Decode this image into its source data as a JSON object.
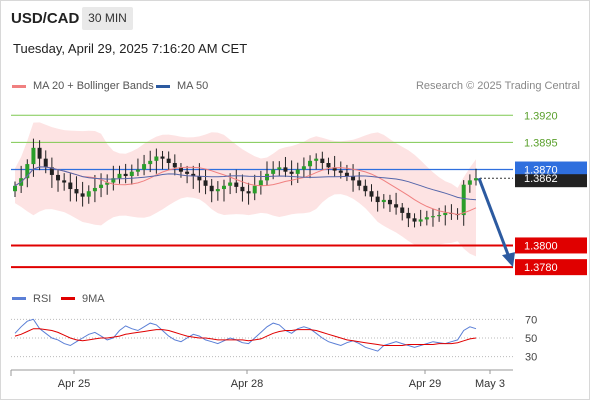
{
  "header": {
    "symbol": "USD/CAD",
    "timeframe": "30 MIN",
    "datetime": "Tuesday, April 29, 2025 7:16:20 AM CET"
  },
  "legend": {
    "ma20_label": "MA 20 + Bollinger Bands",
    "ma20_color": "#f08080",
    "ma50_label": "MA 50",
    "ma50_color": "#2c5aa0",
    "credit": "Research © 2025 Trading Central"
  },
  "rsi_legend": {
    "rsi_label": "RSI",
    "rsi_color": "#5b7fd6",
    "ma_label": "9MA",
    "ma_color": "#e00000"
  },
  "chart_data": [
    {
      "type": "candlestick",
      "title": "USD/CAD 30 MIN",
      "price_range": [
        1.377,
        1.3935
      ],
      "x_tick_labels": [
        "Apr 25",
        "Apr 28",
        "Apr 29",
        "May 3"
      ],
      "levels": [
        {
          "value": 1.392,
          "label": "1.3920",
          "kind": "resistance",
          "color": "#7ec850"
        },
        {
          "value": 1.3895,
          "label": "1.3895",
          "kind": "resistance",
          "color": "#7ec850"
        },
        {
          "value": 1.387,
          "label": "1.3870",
          "kind": "pivot",
          "color": "#2f6fde"
        },
        {
          "value": 1.38,
          "label": "1.3800",
          "kind": "support",
          "color": "#e00000"
        },
        {
          "value": 1.378,
          "label": "1.3780",
          "kind": "support",
          "color": "#e00000"
        }
      ],
      "last_price": {
        "value": 1.3862,
        "label": "1.3862"
      },
      "close_series": [
        1.3855,
        1.3862,
        1.3875,
        1.389,
        1.388,
        1.3872,
        1.3865,
        1.386,
        1.3858,
        1.3852,
        1.3848,
        1.3845,
        1.385,
        1.3853,
        1.3856,
        1.3858,
        1.3862,
        1.3866,
        1.3864,
        1.3868,
        1.387,
        1.3875,
        1.3878,
        1.3882,
        1.388,
        1.3876,
        1.3872,
        1.3868,
        1.3866,
        1.3864,
        1.386,
        1.3855,
        1.385,
        1.3852,
        1.3855,
        1.3858,
        1.3854,
        1.385,
        1.3848,
        1.3855,
        1.386,
        1.3866,
        1.387,
        1.3872,
        1.3868,
        1.3866,
        1.387,
        1.3873,
        1.3878,
        1.388,
        1.3876,
        1.3872,
        1.3869,
        1.3867,
        1.3864,
        1.386,
        1.3855,
        1.385,
        1.3845,
        1.384,
        1.3842,
        1.3838,
        1.3835,
        1.383,
        1.3825,
        1.3822,
        1.3824,
        1.3826,
        1.3827,
        1.3828,
        1.383,
        1.3829,
        1.3828,
        1.3856,
        1.386,
        1.3862
      ],
      "forecast": {
        "from": 1.3862,
        "to": 1.378,
        "direction": "down"
      }
    },
    {
      "type": "line",
      "title": "RSI",
      "y_ticks": [
        30,
        50,
        70
      ],
      "series": [
        {
          "name": "RSI",
          "values": [
            55,
            62,
            68,
            70,
            60,
            55,
            50,
            48,
            44,
            42,
            46,
            50,
            54,
            56,
            52,
            48,
            50,
            58,
            63,
            60,
            58,
            62,
            66,
            64,
            58,
            52,
            48,
            46,
            50,
            54,
            52,
            48,
            46,
            44,
            47,
            50,
            48,
            45,
            44,
            50,
            56,
            62,
            66,
            64,
            58,
            55,
            60,
            62,
            60,
            55,
            50,
            46,
            44,
            42,
            45,
            47,
            44,
            40,
            38,
            36,
            42,
            44,
            46,
            44,
            42,
            40,
            42,
            44,
            46,
            45,
            44,
            46,
            48,
            58,
            62,
            60
          ]
        },
        {
          "name": "9MA",
          "values": [
            52,
            54,
            57,
            60,
            60,
            59,
            58,
            56,
            53,
            50,
            48,
            47,
            48,
            49,
            50,
            50,
            51,
            52,
            54,
            55,
            56,
            57,
            58,
            59,
            59,
            58,
            56,
            54,
            52,
            51,
            50,
            50,
            49,
            48,
            48,
            48,
            48,
            48,
            47,
            48,
            49,
            52,
            55,
            57,
            58,
            58,
            59,
            59,
            59,
            58,
            56,
            54,
            52,
            50,
            48,
            47,
            46,
            45,
            44,
            43,
            42,
            42,
            42,
            42,
            43,
            43,
            43,
            43,
            43,
            44,
            44,
            44,
            45,
            47,
            49,
            50
          ]
        }
      ]
    }
  ]
}
